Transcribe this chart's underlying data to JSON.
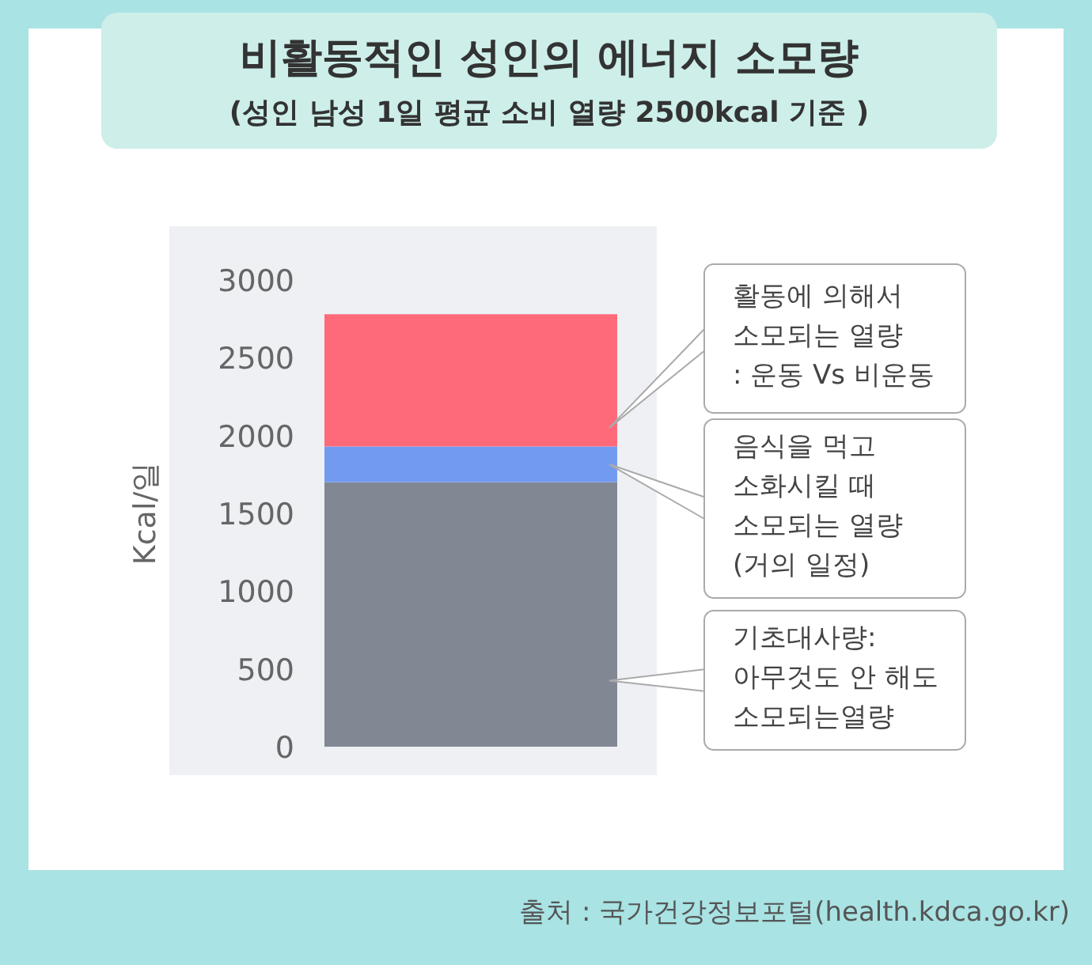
{
  "chart_data": {
    "type": "bar",
    "title": "비활동적인 성인의 에너지 소모량",
    "subtitle": "(성인 남성 1일 평균 소비 열량 2500kcal 기준 )",
    "ylabel": "Kcal/일",
    "categories": [
      null
    ],
    "stacked": true,
    "series": [
      {
        "name": "기초대사량:\n아무것도 안 해도\n소모되는열량",
        "color": "#828794",
        "values": [
          1700
        ]
      },
      {
        "name": "음식을 먹고\n소화시킬 때\n소모되는 열량\n(거의 일정)",
        "color": "#729bef",
        "values": [
          230
        ]
      },
      {
        "name": "활동에 의해서\n소모되는 열량\n: 운동 Vs 비운동",
        "color": "#fe6a7a",
        "values": [
          850
        ]
      }
    ],
    "ylim": [
      0,
      3000
    ],
    "yticks": [
      0,
      500,
      1000,
      1500,
      2000,
      2500,
      3000
    ],
    "grid": false,
    "legend": "right",
    "annotations": [
      "출처 : 국가건강정보포털(health.kdca.go.kr)"
    ]
  }
}
